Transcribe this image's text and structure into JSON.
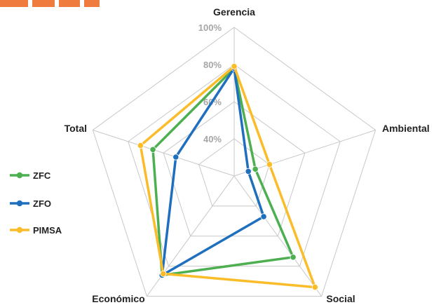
{
  "chart_data": {
    "type": "radar",
    "axes": [
      "Gerencia",
      "Ambiental",
      "Social",
      "Económico",
      "Total"
    ],
    "r_range": [
      20,
      100
    ],
    "ticks": [
      {
        "value": 40,
        "label": "40%"
      },
      {
        "value": 60,
        "label": "60%"
      },
      {
        "value": 80,
        "label": "80%"
      },
      {
        "value": 100,
        "label": "100%"
      }
    ],
    "grid": true,
    "legend_position": "left",
    "series": [
      {
        "name": "ZFC",
        "color": "#4caf50",
        "values": [
          78,
          32,
          74,
          86,
          66
        ]
      },
      {
        "name": "ZFO",
        "color": "#1f6fbf",
        "values": [
          78,
          28,
          47,
          86,
          53
        ]
      },
      {
        "name": "PIMSA",
        "color": "#fbbc2a",
        "values": [
          79,
          40,
          94,
          85,
          73
        ]
      }
    ]
  }
}
